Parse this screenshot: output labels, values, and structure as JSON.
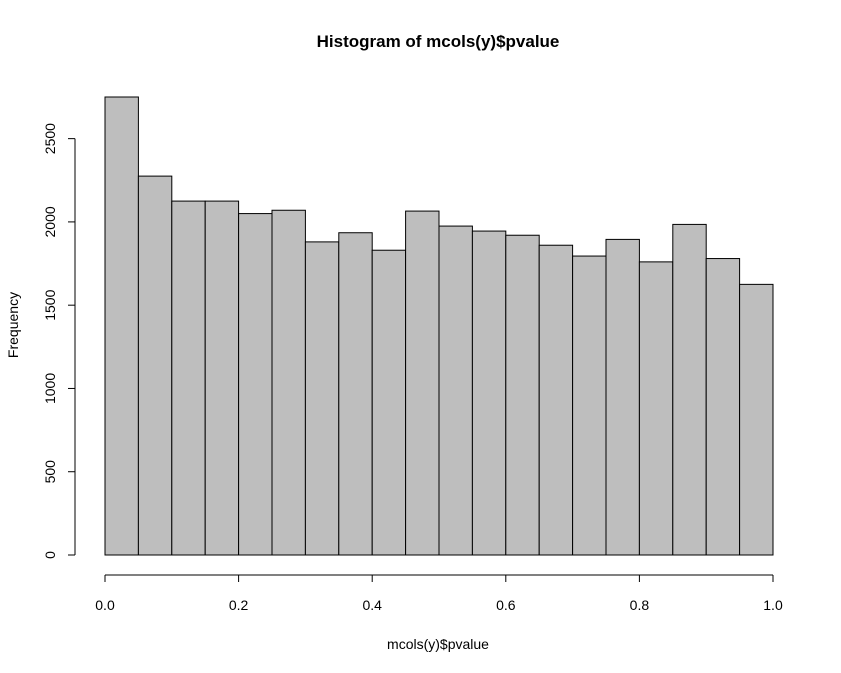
{
  "chart_data": {
    "type": "bar",
    "title": "Histogram of mcols(y)$pvalue",
    "xlabel": "mcols(y)$pvalue",
    "ylabel": "Frequency",
    "bin_edges": [
      0.0,
      0.05,
      0.1,
      0.15,
      0.2,
      0.25,
      0.3,
      0.35,
      0.4,
      0.45,
      0.5,
      0.55,
      0.6,
      0.65,
      0.7,
      0.75,
      0.8,
      0.85,
      0.9,
      0.95,
      1.0
    ],
    "values": [
      2750,
      2275,
      2125,
      2125,
      2050,
      2070,
      1880,
      1935,
      1830,
      2065,
      1975,
      1945,
      1920,
      1860,
      1795,
      1895,
      1760,
      1985,
      1780,
      1625
    ],
    "xlim": [
      0,
      1
    ],
    "ylim": [
      0,
      2750
    ],
    "x_ticks": [
      "0.0",
      "0.2",
      "0.4",
      "0.6",
      "0.8",
      "1.0"
    ],
    "y_ticks": [
      "0",
      "500",
      "1000",
      "1500",
      "2000",
      "2500"
    ],
    "bar_fill": "#bebebe",
    "bar_stroke": "#000000",
    "grid": false,
    "legend": "none"
  }
}
